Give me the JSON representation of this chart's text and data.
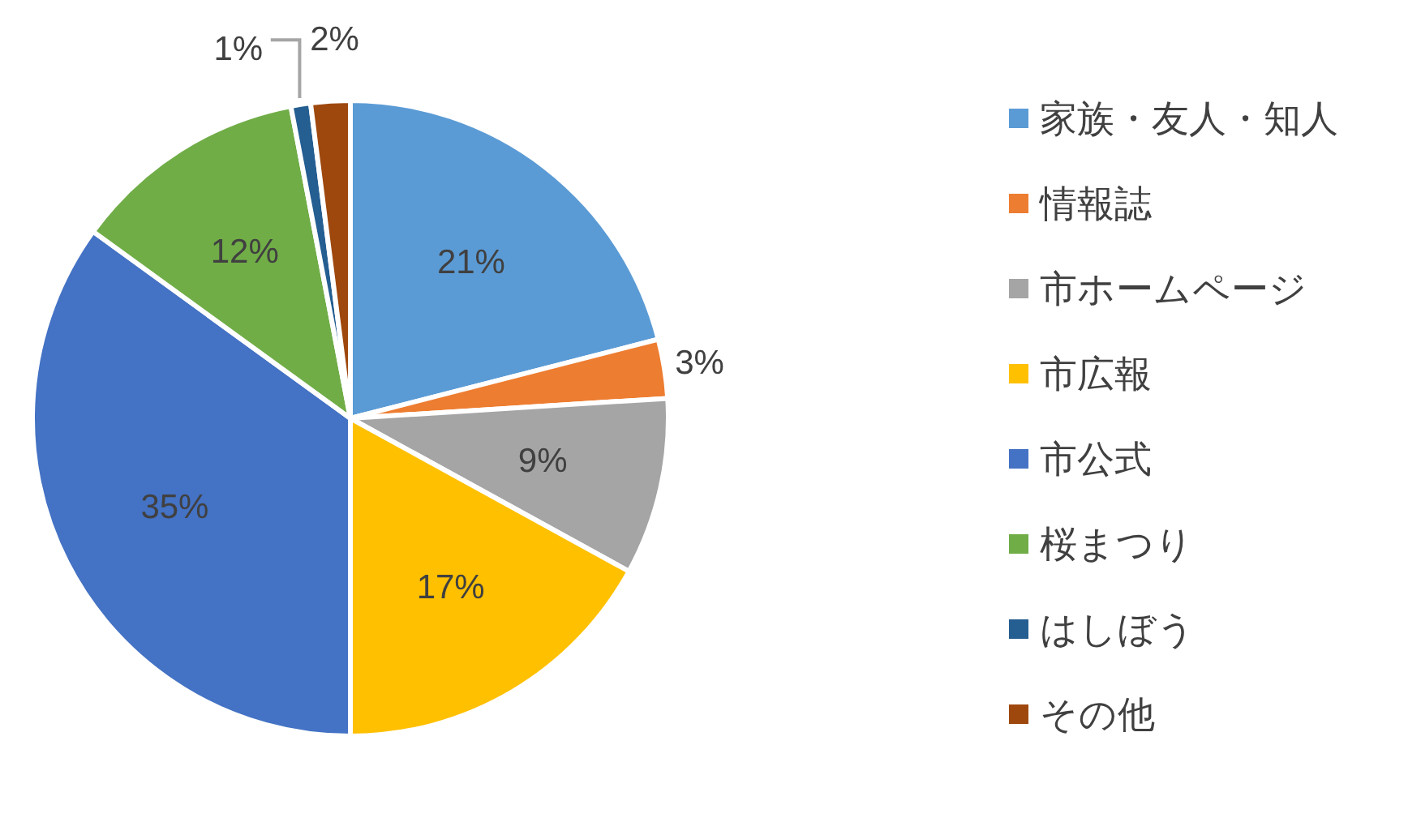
{
  "chart_data": {
    "type": "pie",
    "categories": [
      "家族・友人・知人",
      "情報誌",
      "市ホームページ",
      "市広報",
      "市公式",
      "桜まつり",
      "はしぼう",
      "その他"
    ],
    "values": [
      21,
      3,
      9,
      17,
      35,
      12,
      1,
      2
    ],
    "colors": [
      "#5b9bd5",
      "#ed7d31",
      "#a5a5a5",
      "#ffc000",
      "#4472c4",
      "#70ad47",
      "#255e91",
      "#9e480e"
    ],
    "value_labels": [
      "21%",
      "3%",
      "9%",
      "17%",
      "35%",
      "12%",
      "1%",
      "2%"
    ],
    "legend": "right"
  }
}
